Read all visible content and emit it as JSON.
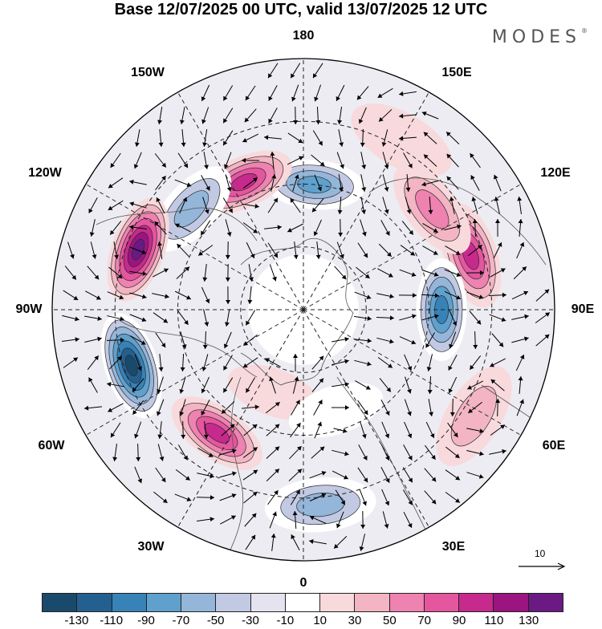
{
  "title": "Base 12/07/2025 00 UTC, valid 13/07/2025 12 UTC",
  "brand": "MODES",
  "brand_mark": "®",
  "longitude_labels": {
    "top": "180",
    "bottom": "0",
    "left": "90W",
    "right": "90E",
    "upper_left_150": "150W",
    "upper_left_120": "120W",
    "upper_right_150": "150E",
    "upper_right_120": "120E",
    "lower_left_60": "60W",
    "lower_left_30": "30W",
    "lower_right_60": "60E",
    "lower_right_30": "30E"
  },
  "wind_reference": {
    "label": "10"
  },
  "colorbar": {
    "colors": [
      "#1a4a6b",
      "#24608f",
      "#3782b7",
      "#5fa0cd",
      "#93b6d9",
      "#c2c9e3",
      "#e5e3f0",
      "#ffffff",
      "#f8d9dc",
      "#f3b5c3",
      "#ee82b1",
      "#e4569e",
      "#c62a8c",
      "#9c1480",
      "#6a1a82"
    ],
    "tick_labels": [
      "-130",
      "-110",
      "-90",
      "-70",
      "-50",
      "-30",
      "-10",
      "10",
      "30",
      "50",
      "70",
      "90",
      "110",
      "130"
    ]
  },
  "anomaly_centers": [
    {
      "lon": 175,
      "r": 0.5,
      "value": -70
    },
    {
      "lon": 205,
      "r": 0.56,
      "value": 90
    },
    {
      "lon": 228,
      "r": 0.6,
      "value": -50
    },
    {
      "lon": 250,
      "r": 0.7,
      "value": 130
    },
    {
      "lon": 288,
      "r": 0.72,
      "value": -130
    },
    {
      "lon": 325,
      "r": 0.6,
      "value": 90
    },
    {
      "lon": 5,
      "r": 0.78,
      "value": -50
    },
    {
      "lon": 58,
      "r": 0.8,
      "value": 30
    },
    {
      "lon": 108,
      "r": 0.7,
      "value": 90
    },
    {
      "lon": 90,
      "r": 0.55,
      "value": -90
    },
    {
      "lon": 128,
      "r": 0.65,
      "value": 50
    },
    {
      "lon": 150,
      "r": 0.78,
      "value": 10
    },
    {
      "lon": 340,
      "r": 0.35,
      "value": 10
    },
    {
      "lon": 18,
      "r": 0.42,
      "value": -10
    }
  ]
}
